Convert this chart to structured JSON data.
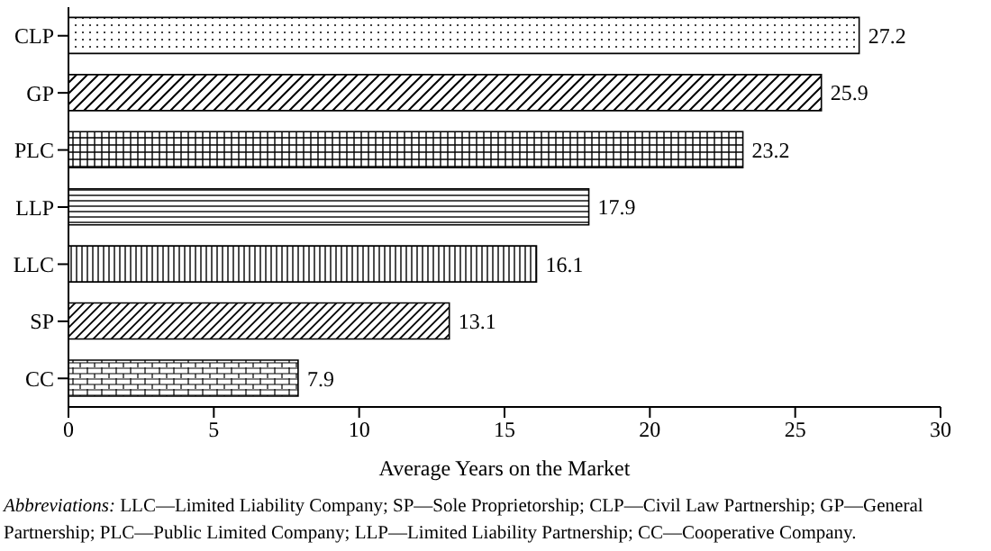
{
  "chart_data": {
    "type": "bar",
    "orientation": "horizontal",
    "categories": [
      "CLP",
      "GP",
      "PLC",
      "LLP",
      "LLC",
      "SP",
      "CC"
    ],
    "values": [
      27.2,
      25.9,
      23.2,
      17.9,
      16.1,
      13.1,
      7.9
    ],
    "xlim": [
      0,
      30
    ],
    "xticks": [
      0,
      5,
      10,
      15,
      20,
      25,
      30
    ],
    "xlabel": "Average Years on the Market",
    "data_labels": true,
    "grid": false,
    "legend": false,
    "annotations": [
      "Abbreviations: LLC—Limited Liability Company; SP—Sole Proprietorship; CLP—Civil Law Partnership; GP—General Partnership; PLC—Public Limited Company; LLP—Limited Liability Partnership; CC—Cooperative Company."
    ]
  }
}
